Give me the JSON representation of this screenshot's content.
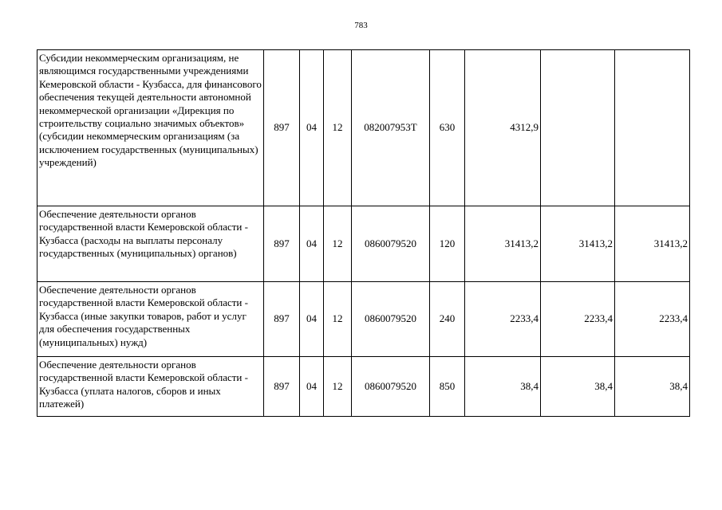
{
  "page_number": "783",
  "rows": [
    {
      "description": "Субсидии некоммерческим организациям, не являющимся государственными учреждениями Кемеровской области - Кузбасса, для финансового обеспечения текущей деятельности автономной некоммерческой организации «Дирекция по строительству социально значимых объектов» (субсидии некоммерческим организациям (за исключением государственных (муниципальных) учреждений)",
      "ministry": "897",
      "section": "04",
      "subsection": "12",
      "target": "082007953Т",
      "expense_type": "630",
      "amount_1": "4312,9",
      "amount_2": "",
      "amount_3": ""
    },
    {
      "description": "Обеспечение деятельности органов государственной власти Кемеровской области - Кузбасса (расходы на выплаты персоналу государственных (муниципальных) органов)",
      "ministry": "897",
      "section": "04",
      "subsection": "12",
      "target": "0860079520",
      "expense_type": "120",
      "amount_1": "31413,2",
      "amount_2": "31413,2",
      "amount_3": "31413,2"
    },
    {
      "description": "Обеспечение деятельности органов государственной власти Кемеровской области - Кузбасса (иные закупки товаров, работ и услуг для обеспечения государственных (муниципальных) нужд)",
      "ministry": "897",
      "section": "04",
      "subsection": "12",
      "target": "0860079520",
      "expense_type": "240",
      "amount_1": "2233,4",
      "amount_2": "2233,4",
      "amount_3": "2233,4"
    },
    {
      "description": "Обеспечение деятельности органов государственной власти Кемеровской области - Кузбасса (уплата налогов, сборов и иных платежей)",
      "ministry": "897",
      "section": "04",
      "subsection": "12",
      "target": "0860079520",
      "expense_type": "850",
      "amount_1": "38,4",
      "amount_2": "38,4",
      "amount_3": "38,4"
    }
  ]
}
